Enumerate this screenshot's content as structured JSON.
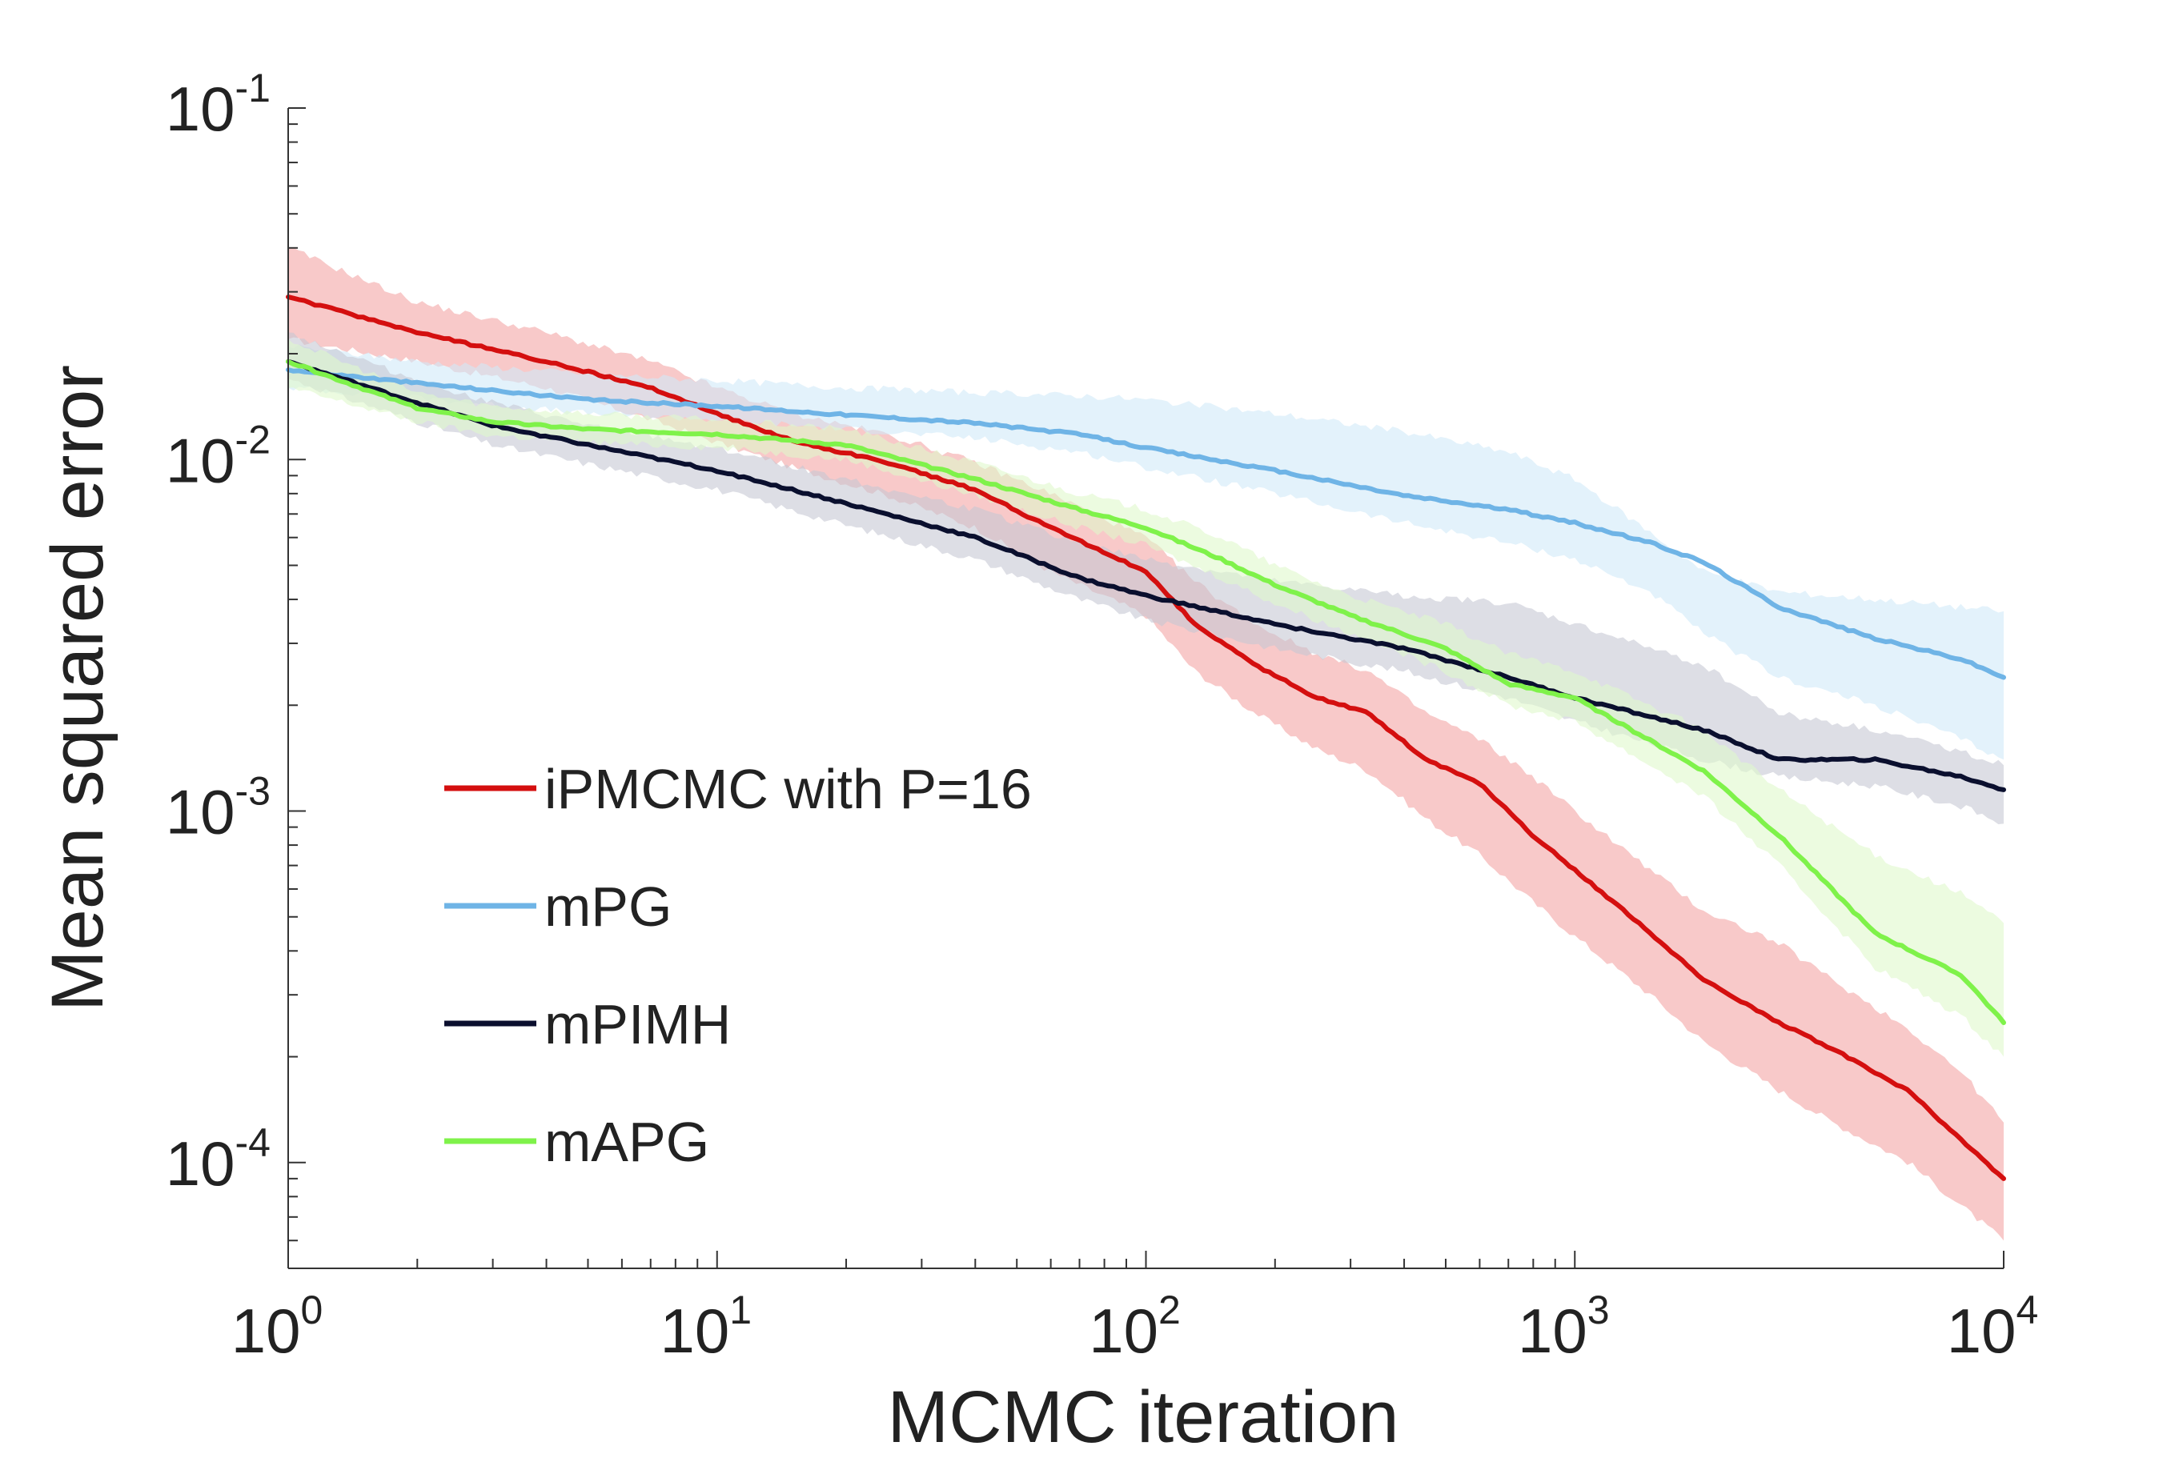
{
  "chart_data": {
    "type": "line",
    "title": "",
    "xlabel": "MCMC iteration",
    "ylabel": "Mean squared error",
    "xscale": "log",
    "yscale": "log",
    "xlim": [
      1,
      10000
    ],
    "ylim": [
      5e-05,
      0.1
    ],
    "grid": false,
    "legend_position": "lower-left",
    "x_ticks": [
      {
        "value": 1,
        "base": "10",
        "exp": "0"
      },
      {
        "value": 10,
        "base": "10",
        "exp": "1"
      },
      {
        "value": 100,
        "base": "10",
        "exp": "2"
      },
      {
        "value": 1000,
        "base": "10",
        "exp": "3"
      },
      {
        "value": 10000,
        "base": "10",
        "exp": "4"
      }
    ],
    "y_ticks": [
      {
        "value": 0.1,
        "base": "10",
        "exp": "-1"
      },
      {
        "value": 0.01,
        "base": "10",
        "exp": "-2"
      },
      {
        "value": 0.001,
        "base": "10",
        "exp": "-3"
      },
      {
        "value": 0.0001,
        "base": "10",
        "exp": "-4"
      }
    ],
    "series": [
      {
        "name": "iPMCMC with P=16",
        "color": "#d40f0f",
        "band_color": "#f4a5a5",
        "x": [
          1,
          2,
          4,
          7,
          10,
          15,
          25,
          40,
          60,
          100,
          130,
          180,
          250,
          330,
          450,
          600,
          800,
          1000,
          1500,
          2000,
          3000,
          4000,
          6000,
          8000,
          10000
        ],
        "y": [
          0.029,
          0.023,
          0.019,
          0.016,
          0.0135,
          0.0113,
          0.0098,
          0.0082,
          0.0064,
          0.0048,
          0.0034,
          0.0026,
          0.0021,
          0.0019,
          0.0014,
          0.0012,
          0.00085,
          0.00068,
          0.00045,
          0.00033,
          0.00025,
          0.00021,
          0.00016,
          0.000115,
          9e-05
        ],
        "lower": [
          0.022,
          0.019,
          0.016,
          0.013,
          0.0112,
          0.0095,
          0.0079,
          0.0064,
          0.0048,
          0.0036,
          0.0025,
          0.0019,
          0.0015,
          0.0013,
          0.00095,
          0.00075,
          0.00055,
          0.00044,
          0.0003,
          0.00022,
          0.00016,
          0.00013,
          0.0001,
          7.5e-05,
          6e-05
        ],
        "upper": [
          0.04,
          0.028,
          0.023,
          0.019,
          0.016,
          0.0135,
          0.0118,
          0.0098,
          0.008,
          0.006,
          0.0045,
          0.0034,
          0.0028,
          0.0025,
          0.0019,
          0.0016,
          0.00125,
          0.001,
          0.00068,
          0.00052,
          0.00042,
          0.00033,
          0.00024,
          0.00018,
          0.00013
        ]
      },
      {
        "name": "mPG",
        "color": "#6fb4e6",
        "band_color": "#d0e9f9",
        "x": [
          1,
          2,
          5,
          10,
          20,
          40,
          70,
          100,
          200,
          400,
          700,
          1000,
          1500,
          2000,
          3000,
          5000,
          8000,
          10000
        ],
        "y": [
          0.018,
          0.0165,
          0.0148,
          0.0142,
          0.0134,
          0.0127,
          0.0118,
          0.0108,
          0.0093,
          0.0079,
          0.0072,
          0.0066,
          0.0058,
          0.0051,
          0.0038,
          0.0031,
          0.0027,
          0.0024
        ],
        "lower": [
          0.016,
          0.015,
          0.0135,
          0.013,
          0.0122,
          0.0115,
          0.0105,
          0.0095,
          0.008,
          0.0066,
          0.0058,
          0.0052,
          0.0042,
          0.0032,
          0.0024,
          0.002,
          0.0016,
          0.0014
        ],
        "upper": [
          0.021,
          0.019,
          0.0175,
          0.0168,
          0.016,
          0.0155,
          0.0152,
          0.0148,
          0.0135,
          0.012,
          0.0105,
          0.0088,
          0.0062,
          0.0048,
          0.0042,
          0.004,
          0.0038,
          0.0037
        ]
      },
      {
        "name": "mPIMH",
        "color": "#0a0f2e",
        "band_color": "#c7c8d4",
        "x": [
          1,
          2,
          3,
          5,
          10,
          20,
          40,
          70,
          100,
          200,
          400,
          700,
          1000,
          2000,
          3000,
          5000,
          8000,
          10000
        ],
        "y": [
          0.019,
          0.0145,
          0.0125,
          0.011,
          0.0093,
          0.0075,
          0.006,
          0.0046,
          0.0041,
          0.0034,
          0.0029,
          0.0024,
          0.0021,
          0.0017,
          0.0014,
          0.0014,
          0.00125,
          0.00115
        ],
        "lower": [
          0.017,
          0.0128,
          0.011,
          0.0097,
          0.0082,
          0.0065,
          0.0052,
          0.004,
          0.0035,
          0.0029,
          0.0025,
          0.0021,
          0.0018,
          0.0014,
          0.00125,
          0.00118,
          0.00103,
          0.00092
        ],
        "upper": [
          0.023,
          0.0168,
          0.0145,
          0.0125,
          0.0108,
          0.0088,
          0.0072,
          0.0058,
          0.0052,
          0.0045,
          0.0041,
          0.0039,
          0.0034,
          0.0026,
          0.0019,
          0.0017,
          0.00148,
          0.00135
        ]
      },
      {
        "name": "mAPG",
        "color": "#7ff24a",
        "band_color": "#dff8cc",
        "x": [
          1,
          2,
          3,
          5,
          10,
          20,
          40,
          70,
          100,
          150,
          200,
          300,
          500,
          700,
          1000,
          2000,
          3000,
          5000,
          8000,
          10000
        ],
        "y": [
          0.019,
          0.014,
          0.0128,
          0.0122,
          0.0118,
          0.011,
          0.0088,
          0.0072,
          0.0064,
          0.0052,
          0.0044,
          0.0036,
          0.0029,
          0.0023,
          0.0021,
          0.0013,
          0.00085,
          0.00045,
          0.00034,
          0.00025
        ],
        "lower": [
          0.016,
          0.0128,
          0.0117,
          0.0112,
          0.0108,
          0.01,
          0.0079,
          0.0064,
          0.0057,
          0.0046,
          0.0039,
          0.0032,
          0.0025,
          0.002,
          0.0018,
          0.0011,
          0.0007,
          0.00036,
          0.00026,
          0.0002
        ],
        "upper": [
          0.022,
          0.0155,
          0.0142,
          0.0135,
          0.013,
          0.0122,
          0.0098,
          0.008,
          0.0072,
          0.006,
          0.005,
          0.0041,
          0.0034,
          0.0028,
          0.0025,
          0.0017,
          0.00115,
          0.00075,
          0.00058,
          0.00048
        ]
      }
    ]
  }
}
